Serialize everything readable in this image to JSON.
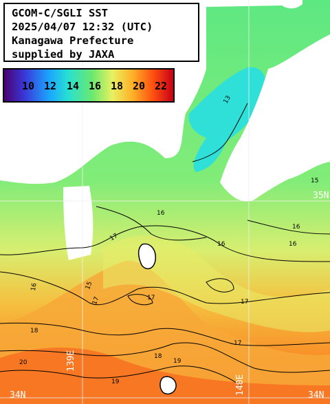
{
  "title": {
    "line1": "GCOM-C/SGLI SST",
    "line2": "2025/04/07 12:32 (UTC)",
    "line3": "Kanagawa Prefecture",
    "line4": "supplied by JAXA"
  },
  "colorbar": {
    "ticks": [
      "10",
      "12",
      "14",
      "16",
      "18",
      "20",
      "22"
    ],
    "colors": [
      "#4a0070",
      "#3a38d8",
      "#1aa8ff",
      "#28e0d0",
      "#6ae870",
      "#e8f060",
      "#ffb028",
      "#ff5010",
      "#c80018"
    ]
  },
  "grid_labels": {
    "lat_left": "34N",
    "lat_right": "34N",
    "lon_bottom_left": "139E",
    "lon_bottom_right": "140E",
    "lat_upper_right": "35N"
  },
  "contours": {
    "c13": "13",
    "c15a": "15",
    "c15b": "15",
    "c16a": "16",
    "c16b": "16",
    "c16c": "16",
    "c16d": "16",
    "c17a": "17",
    "c17b": "17",
    "c17c": "17",
    "c17d": "17",
    "c18a": "18",
    "c18b": "18",
    "c19a": "19",
    "c19b": "19",
    "c20a": "20",
    "c16e": "16",
    "c17e": "17"
  },
  "land_color": "#ffffff",
  "contour_color": "#000000"
}
